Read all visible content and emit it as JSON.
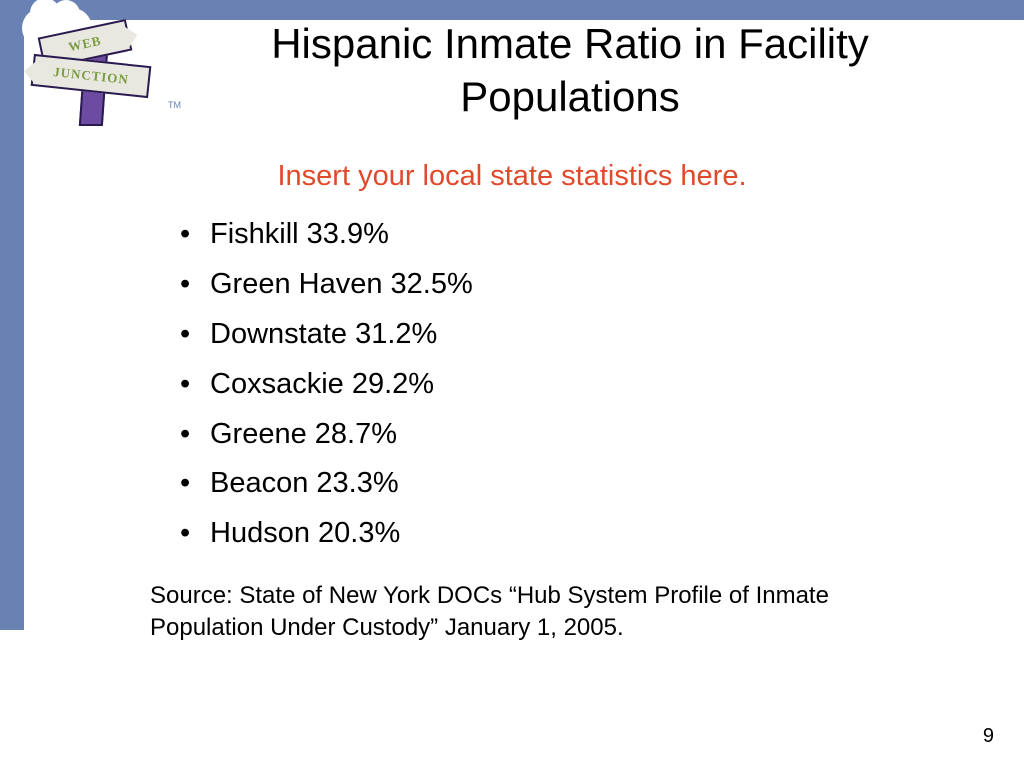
{
  "colors": {
    "bar": "#6981b3",
    "background": "#ffffff",
    "title_text": "#000000",
    "subtitle_text": "#e04a2a",
    "body_text": "#000000",
    "logo_post": "#6d4ba0",
    "logo_sign_bg": "#e8e8e0",
    "logo_text": "#7a9b3e"
  },
  "logo": {
    "line1": "WEB",
    "line2": "JUNCTION",
    "tm": "TM"
  },
  "title": "Hispanic Inmate Ratio in Facility Populations",
  "subtitle": "Insert your local state statistics here.",
  "items": [
    "Fishkill 33.9%",
    "Green Haven 32.5%",
    "Downstate 31.2%",
    "Coxsackie 29.2%",
    "Greene 28.7%",
    "Beacon 23.3%",
    "Hudson 20.3%"
  ],
  "source": "Source: State of New York DOCs “Hub System Profile of Inmate Population Under Custody” January 1, 2005.",
  "page_number": "9",
  "typography": {
    "title_fontsize": 42,
    "subtitle_fontsize": 29,
    "list_fontsize": 29,
    "source_fontsize": 24,
    "pagenum_fontsize": 20
  }
}
